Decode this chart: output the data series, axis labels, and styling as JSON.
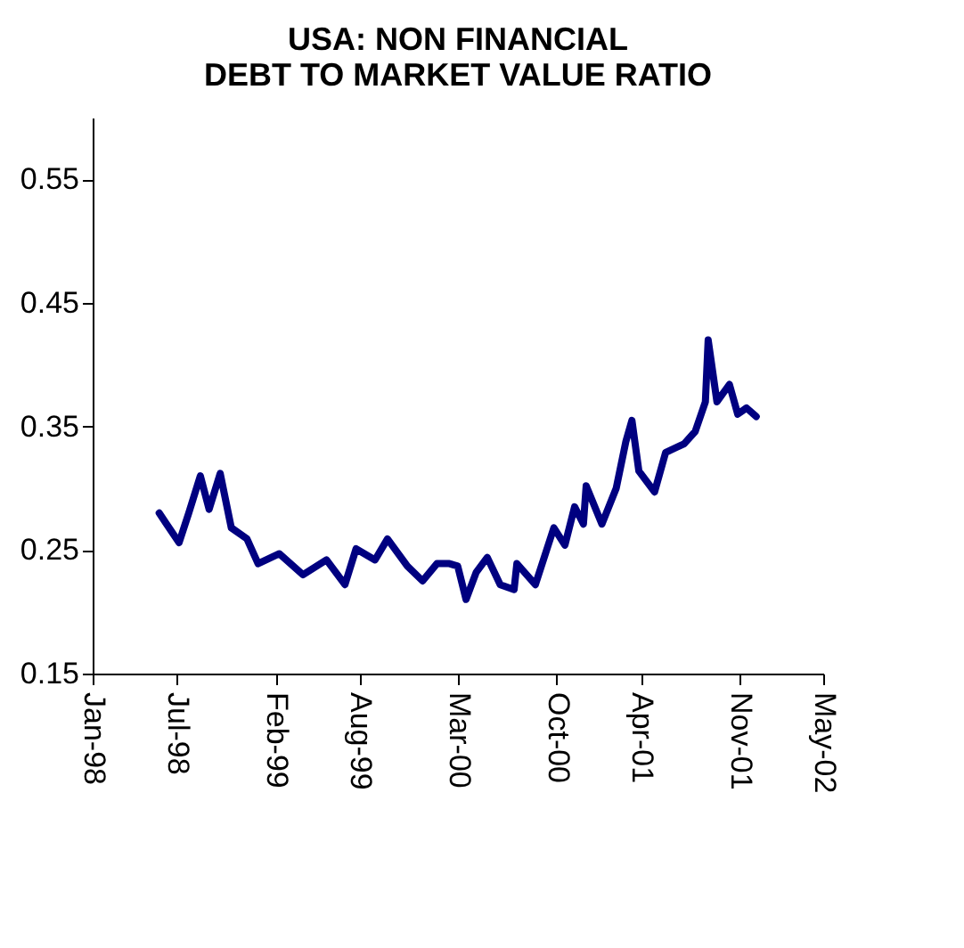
{
  "chart_data": {
    "type": "line",
    "title": [
      "USA: NON FINANCIAL",
      "DEBT TO MARKET VALUE RATIO"
    ],
    "x": [
      "1998-05-25",
      "1998-06-10",
      "1998-07-07",
      "1998-07-28",
      "1998-08-22",
      "1998-09-10",
      "1998-10-04",
      "1998-10-28",
      "1998-12-01",
      "1998-12-25",
      "1999-02-09",
      "1999-04-01",
      "1999-05-22",
      "1999-07-01",
      "1999-07-25",
      "1999-09-04",
      "1999-10-01",
      "1999-11-13",
      "1999-12-16",
      "2000-01-16",
      "2000-02-12",
      "2000-03-01",
      "2000-03-19",
      "2000-04-10",
      "2000-05-04",
      "2000-06-01",
      "2000-07-01",
      "2000-07-07",
      "2000-08-16",
      "2000-09-25",
      "2000-10-19",
      "2000-11-09",
      "2000-11-28",
      "2000-12-04",
      "2001-01-07",
      "2001-02-07",
      "2001-02-28",
      "2001-03-13",
      "2001-03-28",
      "2001-05-01",
      "2001-05-25",
      "2001-07-04",
      "2001-07-28",
      "2001-08-19",
      "2001-08-25",
      "2001-09-13",
      "2001-10-10",
      "2001-10-28",
      "2001-11-16",
      "2001-12-07"
    ],
    "series": [
      {
        "color": "#000080",
        "values": [
          0.28,
          0.271,
          0.256,
          0.28,
          0.31,
          0.283,
          0.312,
          0.268,
          0.259,
          0.239,
          0.247,
          0.23,
          0.242,
          0.222,
          0.251,
          0.242,
          0.259,
          0.237,
          0.225,
          0.239,
          0.239,
          0.237,
          0.21,
          0.232,
          0.244,
          0.222,
          0.218,
          0.239,
          0.222,
          0.268,
          0.254,
          0.285,
          0.271,
          0.302,
          0.271,
          0.3,
          0.338,
          0.355,
          0.314,
          0.297,
          0.329,
          0.336,
          0.346,
          0.37,
          0.42,
          0.37,
          0.384,
          0.36,
          0.365,
          0.358
        ]
      }
    ],
    "xlim": [
      "1998-01-01",
      "2002-05-01"
    ],
    "xticks": [
      {
        "value": "1998-01-01",
        "label": "Jan-98"
      },
      {
        "value": "1998-07-01",
        "label": "Jul-98"
      },
      {
        "value": "1999-02-01",
        "label": "Feb-99"
      },
      {
        "value": "1999-08-01",
        "label": "Aug-99"
      },
      {
        "value": "2000-03-01",
        "label": "Mar-00"
      },
      {
        "value": "2000-10-01",
        "label": "Oct-00"
      },
      {
        "value": "2001-04-01",
        "label": "Apr-01"
      },
      {
        "value": "2001-11-01",
        "label": "Nov-01"
      },
      {
        "value": "2002-05-01",
        "label": "May-02"
      }
    ],
    "ylim": [
      0.15,
      0.6
    ],
    "yticks": [
      0.15,
      0.25,
      0.35,
      0.45,
      0.55
    ],
    "grid": false,
    "legend": false,
    "marker": "none",
    "line_style": "solid"
  }
}
